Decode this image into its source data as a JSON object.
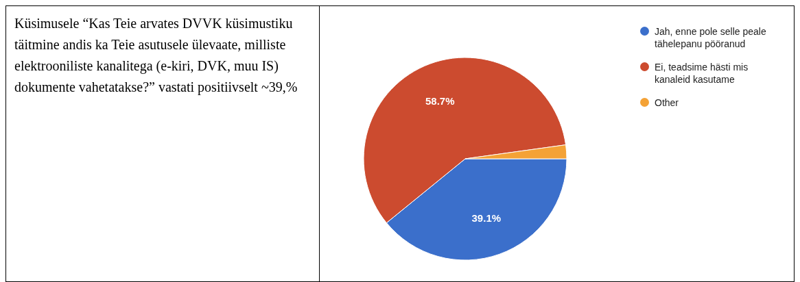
{
  "chart_data": {
    "type": "pie",
    "categories": [
      "Jah, enne pole selle peale tähelepanu pööranud",
      "Ei, teadsime hästi mis kanaleid kasutame",
      "Other"
    ],
    "values": [
      39.1,
      58.7,
      2.2
    ],
    "colors": [
      "#3b6fcb",
      "#cc4b2f",
      "#f4a236"
    ],
    "value_labels": [
      "39.1%",
      "58.7%",
      null
    ],
    "legend": "right",
    "annotations": [
      "Küsimusele “Kas Teie arvates DVVK küsimustiku täitmine andis ka Teie asutusele ülevaate, milliste elektrooniliste kanalitega (e-kiri, DVK, muu IS) dokumente vahetatakse?” vastati positiivselt ~39,%"
    ]
  }
}
